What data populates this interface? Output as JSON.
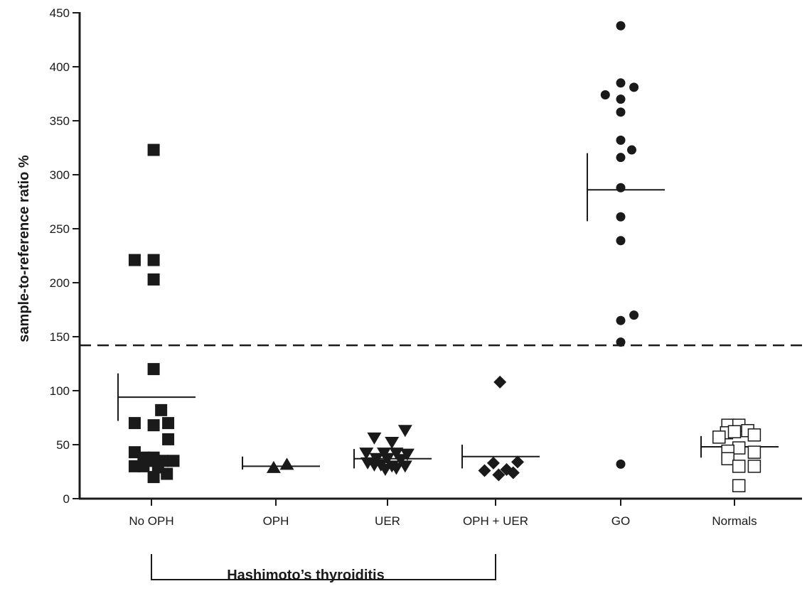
{
  "chart_data": {
    "type": "scatter",
    "ylabel": "sample-to-reference ratio %",
    "ylim": [
      0,
      450
    ],
    "yticks": [
      0,
      50,
      100,
      150,
      200,
      250,
      300,
      350,
      400,
      450
    ],
    "yticks_labels": [
      "0",
      "50",
      "100",
      "150",
      "200",
      "250",
      "300",
      "350",
      "400",
      "450"
    ],
    "categories": [
      "No OPH",
      "OPH",
      "UER",
      "OPH + UER",
      "GO",
      "Normals"
    ],
    "cutoff": 142,
    "group_label": "Hashimoto’s thyroiditis",
    "group_span": [
      "No OPH",
      "OPH + UER"
    ],
    "series": [
      {
        "category": "No OPH",
        "marker": "square-filled",
        "mean": 94,
        "sd_high": 116,
        "sd_low": 72,
        "points": [
          {
            "o": 0.05,
            "y": 323
          },
          {
            "o": -0.38,
            "y": 221
          },
          {
            "o": 0.05,
            "y": 221
          },
          {
            "o": 0.05,
            "y": 203
          },
          {
            "o": 0.05,
            "y": 120
          },
          {
            "o": 0.22,
            "y": 82
          },
          {
            "o": -0.38,
            "y": 70
          },
          {
            "o": 0.38,
            "y": 70
          },
          {
            "o": 0.05,
            "y": 68
          },
          {
            "o": 0.38,
            "y": 55
          },
          {
            "o": -0.38,
            "y": 43
          },
          {
            "o": -0.18,
            "y": 38
          },
          {
            "o": 0.05,
            "y": 38
          },
          {
            "o": -0.05,
            "y": 35
          },
          {
            "o": 0.25,
            "y": 35
          },
          {
            "o": 0.5,
            "y": 35
          },
          {
            "o": -0.38,
            "y": 30
          },
          {
            "o": -0.18,
            "y": 30
          },
          {
            "o": 0.15,
            "y": 29
          },
          {
            "o": 0.35,
            "y": 23
          },
          {
            "o": 0.05,
            "y": 20
          }
        ]
      },
      {
        "category": "OPH",
        "marker": "triangle-up",
        "mean": 30,
        "sd_high": 39,
        "sd_low": 27,
        "points": [
          {
            "o": -0.05,
            "y": 29
          },
          {
            "o": 0.25,
            "y": 32
          }
        ]
      },
      {
        "category": "UER",
        "marker": "triangle-down",
        "mean": 37,
        "sd_high": 46,
        "sd_low": 28,
        "points": [
          {
            "o": 0.4,
            "y": 63
          },
          {
            "o": -0.3,
            "y": 56
          },
          {
            "o": 0.1,
            "y": 52
          },
          {
            "o": -0.48,
            "y": 42
          },
          {
            "o": -0.08,
            "y": 42
          },
          {
            "o": 0.2,
            "y": 42
          },
          {
            "o": 0.45,
            "y": 41
          },
          {
            "o": -0.25,
            "y": 37
          },
          {
            "o": 0.0,
            "y": 37
          },
          {
            "o": 0.3,
            "y": 36
          },
          {
            "o": -0.45,
            "y": 33
          },
          {
            "o": -0.3,
            "y": 31
          },
          {
            "o": -0.15,
            "y": 31
          },
          {
            "o": 0.1,
            "y": 30
          },
          {
            "o": 0.4,
            "y": 30
          },
          {
            "o": -0.05,
            "y": 27
          },
          {
            "o": 0.2,
            "y": 28
          }
        ]
      },
      {
        "category": "OPH + UER",
        "marker": "diamond",
        "mean": 39,
        "sd_high": 50,
        "sd_low": 28,
        "points": [
          {
            "o": 0.1,
            "y": 108
          },
          {
            "o": 0.5,
            "y": 34
          },
          {
            "o": -0.05,
            "y": 33
          },
          {
            "o": -0.25,
            "y": 26
          },
          {
            "o": 0.25,
            "y": 27
          },
          {
            "o": 0.4,
            "y": 24
          },
          {
            "o": 0.07,
            "y": 22
          }
        ]
      },
      {
        "category": "GO",
        "marker": "circle-filled",
        "mean": 286,
        "sd_high": 320,
        "sd_low": 257,
        "points": [
          {
            "o": 0.0,
            "y": 438
          },
          {
            "o": 0.0,
            "y": 385
          },
          {
            "o": 0.3,
            "y": 381
          },
          {
            "o": -0.35,
            "y": 374
          },
          {
            "o": 0.0,
            "y": 370
          },
          {
            "o": 0.0,
            "y": 358
          },
          {
            "o": 0.0,
            "y": 332
          },
          {
            "o": 0.25,
            "y": 323
          },
          {
            "o": 0.0,
            "y": 316
          },
          {
            "o": 0.0,
            "y": 288
          },
          {
            "o": 0.0,
            "y": 261
          },
          {
            "o": 0.0,
            "y": 239
          },
          {
            "o": 0.3,
            "y": 170
          },
          {
            "o": 0.0,
            "y": 165
          },
          {
            "o": 0.0,
            "y": 145
          },
          {
            "o": 0.0,
            "y": 32
          }
        ]
      },
      {
        "category": "Normals",
        "marker": "square-open",
        "mean": 48,
        "sd_high": 58,
        "sd_low": 38,
        "points": [
          {
            "o": -0.15,
            "y": 68
          },
          {
            "o": 0.1,
            "y": 68
          },
          {
            "o": 0.3,
            "y": 63
          },
          {
            "o": -0.18,
            "y": 61
          },
          {
            "o": 0.45,
            "y": 59
          },
          {
            "o": 0.0,
            "y": 62
          },
          {
            "o": -0.35,
            "y": 57
          },
          {
            "o": 0.1,
            "y": 47
          },
          {
            "o": -0.15,
            "y": 44
          },
          {
            "o": 0.45,
            "y": 43
          },
          {
            "o": -0.15,
            "y": 37
          },
          {
            "o": 0.45,
            "y": 30
          },
          {
            "o": 0.1,
            "y": 30
          },
          {
            "o": 0.1,
            "y": 12
          }
        ]
      }
    ]
  }
}
